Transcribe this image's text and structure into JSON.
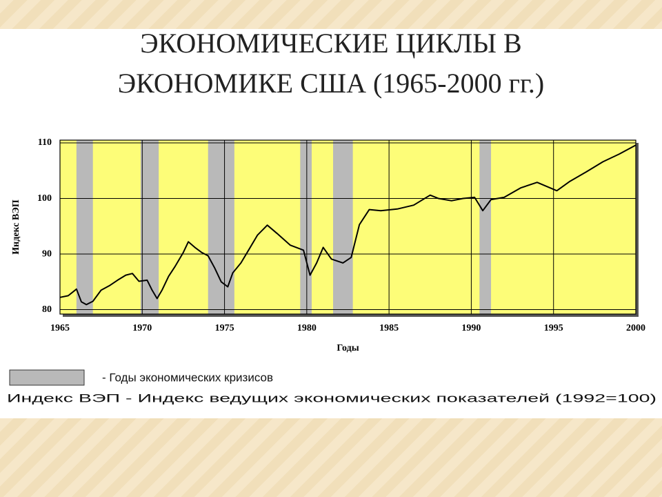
{
  "chart_data": {
    "type": "line",
    "title_lines": [
      "ЭКОНОМИЧЕСКИЕ ЦИКЛЫ В",
      "ЭКОНОМИКЕ США  (1965-2000 гг.)"
    ],
    "x_label": "Годы",
    "y_label": "Индекс ВЭП",
    "xlim": [
      1965,
      2000
    ],
    "xticks": [
      1965,
      1970,
      1975,
      1980,
      1985,
      1990,
      1995,
      2000
    ],
    "ylim": [
      79.2,
      110.5
    ],
    "yticks": [
      80,
      90,
      100,
      110
    ],
    "grid": true,
    "background": "#fdfd78",
    "shaded_periods": {
      "color": "#b9b9b9",
      "spans": [
        [
          1966.0,
          1967.0
        ],
        [
          1969.9,
          1971.0
        ],
        [
          1974.0,
          1975.6
        ],
        [
          1979.6,
          1980.3
        ],
        [
          1981.6,
          1982.8
        ],
        [
          1990.5,
          1991.2
        ]
      ]
    },
    "series": [
      {
        "name": "Индекс ВЭП",
        "color": "#000000",
        "x": [
          1965.0,
          1965.5,
          1966.0,
          1966.3,
          1966.6,
          1967.0,
          1967.5,
          1968.0,
          1968.5,
          1969.0,
          1969.4,
          1969.8,
          1970.3,
          1970.6,
          1970.9,
          1971.2,
          1971.6,
          1972.0,
          1972.5,
          1972.8,
          1973.2,
          1973.6,
          1974.0,
          1974.4,
          1974.8,
          1975.2,
          1975.5,
          1976.0,
          1976.5,
          1977.0,
          1977.6,
          1978.2,
          1979.0,
          1979.8,
          1980.2,
          1980.6,
          1981.0,
          1981.5,
          1982.2,
          1982.7,
          1983.2,
          1983.8,
          1984.5,
          1985.5,
          1986.5,
          1987.5,
          1988.0,
          1988.8,
          1989.5,
          1990.2,
          1990.7,
          1991.2,
          1992.0,
          1993.0,
          1994.0,
          1995.2,
          1996.0,
          1997.0,
          1998.0,
          1999.0,
          2000.0
        ],
        "values": [
          82.2,
          82.5,
          83.7,
          81.4,
          80.9,
          81.5,
          83.5,
          84.3,
          85.3,
          86.2,
          86.5,
          85.1,
          85.3,
          83.5,
          82.0,
          83.5,
          86.0,
          87.8,
          90.3,
          92.2,
          91.2,
          90.3,
          89.7,
          87.5,
          85.0,
          84.1,
          86.6,
          88.4,
          90.9,
          93.4,
          95.2,
          93.7,
          91.6,
          90.7,
          86.2,
          88.4,
          91.2,
          89.1,
          88.4,
          89.4,
          95.3,
          98.0,
          97.8,
          98.1,
          98.8,
          100.6,
          100.0,
          99.6,
          100.0,
          100.2,
          97.8,
          99.8,
          100.2,
          101.9,
          102.9,
          101.4,
          103.1,
          104.8,
          106.6,
          108.0,
          109.6
        ]
      }
    ],
    "legend": {
      "shade_text": "- Годы экономических кризисов",
      "note": "Индекс ВЭП - Индекс ведущих экономических показателей (1992=100)"
    }
  }
}
